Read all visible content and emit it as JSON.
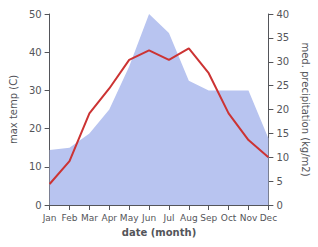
{
  "chart_data": {
    "type": "line",
    "categories": [
      "Jan",
      "Feb",
      "Mar",
      "Apr",
      "May",
      "Jun",
      "Jul",
      "Aug",
      "Sep",
      "Oct",
      "Nov",
      "Dec"
    ],
    "xlabel": "date (month)",
    "ylabel": "max temp (C)",
    "y2label": "med. precipitation (kg/m2)",
    "ylim": [
      0,
      50
    ],
    "yticks": [
      0,
      10,
      20,
      30,
      40,
      50
    ],
    "y2lim": [
      0,
      40
    ],
    "y2ticks": [
      0,
      5,
      10,
      15,
      20,
      25,
      30,
      35,
      40
    ],
    "grid": false,
    "series": [
      {
        "type": "area",
        "axis": "y2",
        "color": "#b8c4f0",
        "values": [
          11.5,
          12.0,
          15.0,
          20.0,
          29.0,
          40.0,
          36.0,
          26.0,
          24.0,
          24.0,
          24.0,
          14.0
        ]
      },
      {
        "type": "line",
        "color": "#cc3333",
        "values": [
          5.5,
          11.5,
          24.0,
          30.5,
          38.0,
          40.5,
          38.0,
          41.0,
          34.5,
          24.0,
          17.0,
          12.5
        ]
      }
    ]
  }
}
